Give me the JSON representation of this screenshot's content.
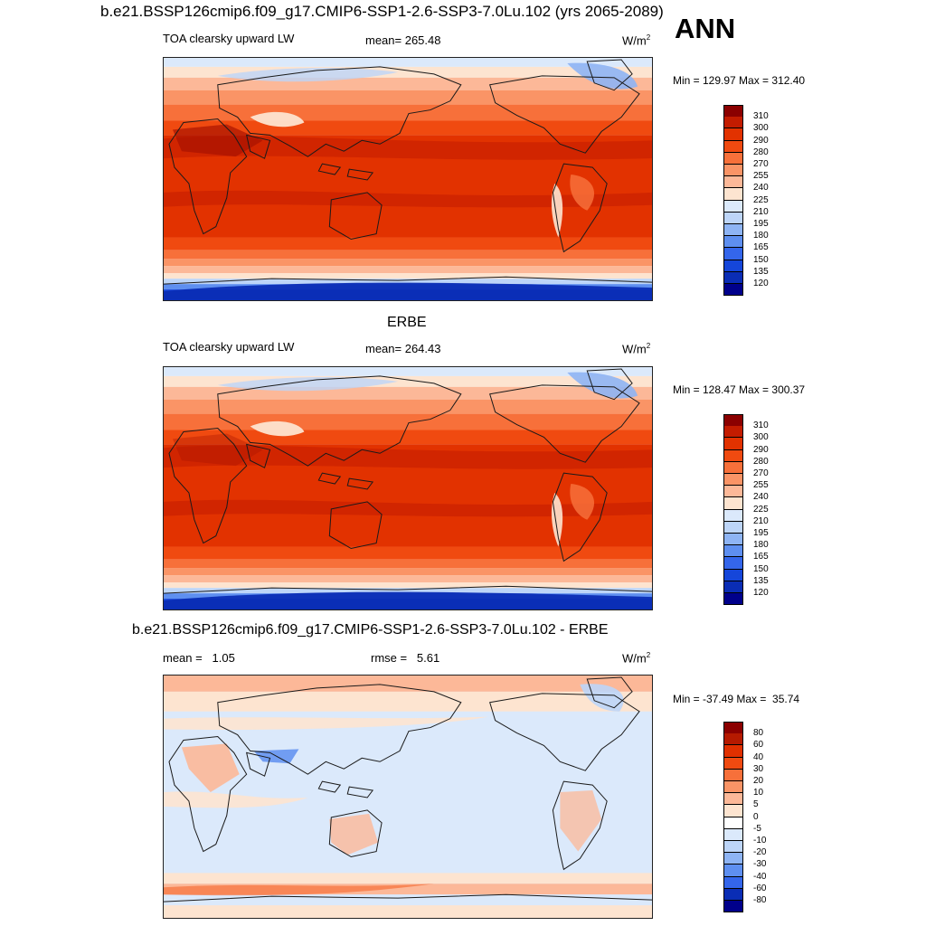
{
  "header": {
    "case_title": "b.e21.BSSP126cmip6.f09_g17.CMIP6-SSP1-2.6-SSP3-7.0Lu.102 (yrs 2065-2089)",
    "season": "ANN"
  },
  "panels": [
    {
      "variable": "TOA clearsky upward LW",
      "mean_text": "mean= 265.48",
      "units": "W/m",
      "units_sup": "2",
      "minmax": "Min = 129.97 Max = 312.40",
      "colorbar": {
        "labels": [
          "310",
          "300",
          "290",
          "280",
          "270",
          "255",
          "240",
          "225",
          "210",
          "195",
          "180",
          "165",
          "150",
          "135",
          "120"
        ],
        "colors": [
          "#8b0000",
          "#c31c00",
          "#e23200",
          "#f04a10",
          "#f7703a",
          "#fa9466",
          "#fcb898",
          "#fde4d0",
          "#dbe9fb",
          "#bdd5f8",
          "#8eb4f4",
          "#5e8ff0",
          "#3466eb",
          "#1546da",
          "#0a2db5",
          "#00008b"
        ]
      },
      "map_kind": "toa"
    },
    {
      "panel_title": "ERBE",
      "variable": "TOA clearsky upward LW",
      "mean_text": "mean= 264.43",
      "units": "W/m",
      "units_sup": "2",
      "minmax": "Min = 128.47 Max = 300.37",
      "colorbar": {
        "labels": [
          "310",
          "300",
          "290",
          "280",
          "270",
          "255",
          "240",
          "225",
          "210",
          "195",
          "180",
          "165",
          "150",
          "135",
          "120"
        ],
        "colors": [
          "#8b0000",
          "#c31c00",
          "#e23200",
          "#f04a10",
          "#f7703a",
          "#fa9466",
          "#fcb898",
          "#fde4d0",
          "#dbe9fb",
          "#bdd5f8",
          "#8eb4f4",
          "#5e8ff0",
          "#3466eb",
          "#1546da",
          "#0a2db5",
          "#00008b"
        ]
      },
      "map_kind": "toa"
    },
    {
      "panel_title": "b.e21.BSSP126cmip6.f09_g17.CMIP6-SSP1-2.6-SSP3-7.0Lu.102 - ERBE",
      "mean_text": "mean =   1.05",
      "rmse_text": "rmse =   5.61",
      "units": "W/m",
      "units_sup": "2",
      "minmax": "Min = -37.49 Max =  35.74",
      "colorbar": {
        "labels": [
          "80",
          "60",
          "40",
          "30",
          "20",
          "10",
          "5",
          "0",
          "-5",
          "-10",
          "-20",
          "-30",
          "-40",
          "-60",
          "-80"
        ],
        "colors": [
          "#8b0000",
          "#b51a00",
          "#e03000",
          "#f04a10",
          "#f7703a",
          "#fa9466",
          "#fcb898",
          "#fde4d0",
          "#ffffff",
          "#dbe9fb",
          "#bdd5f8",
          "#8eb4f4",
          "#5e8ff0",
          "#3466eb",
          "#0a2db5",
          "#00008b"
        ]
      },
      "map_kind": "diff"
    }
  ]
}
